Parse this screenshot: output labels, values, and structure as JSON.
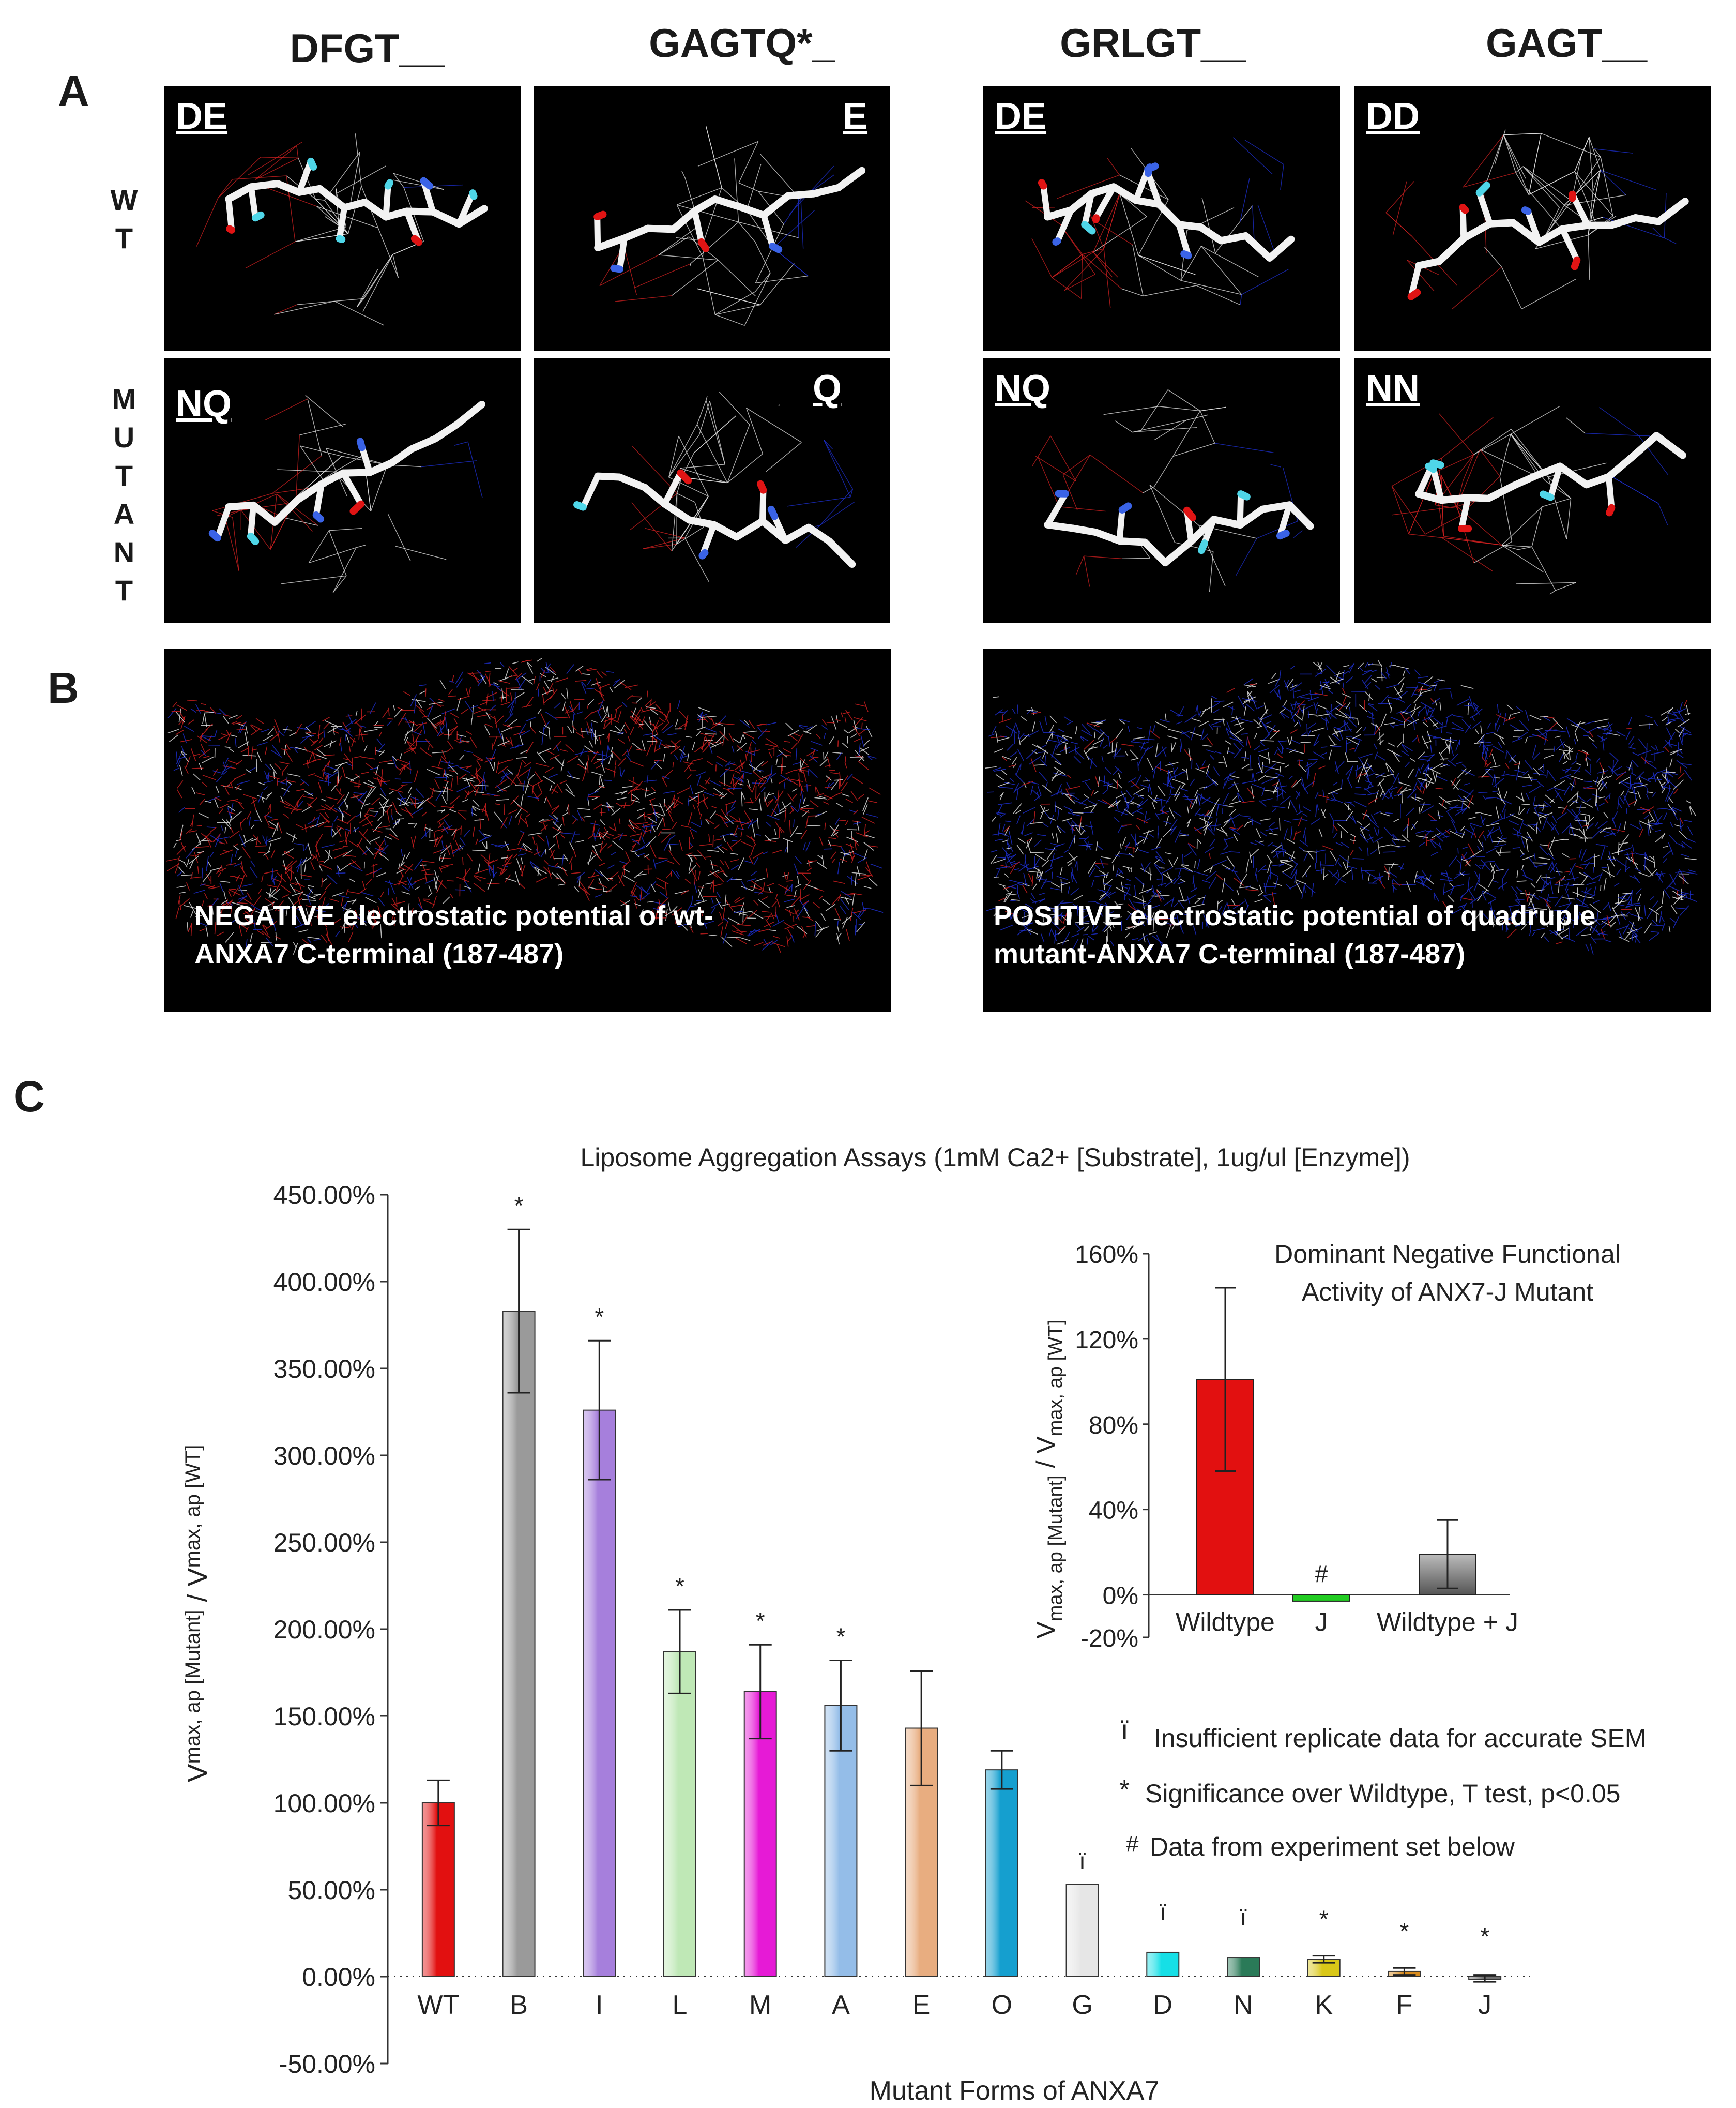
{
  "panel_labels": {
    "a": "A",
    "b": "B",
    "c": "C"
  },
  "panel_a": {
    "columns": [
      "DFGT__",
      "GAGTQ*_",
      "GRLGT__",
      "GAGT__"
    ],
    "rows": [
      {
        "label": "W\nT"
      },
      {
        "label": "M\nU\nT\nA\nN\nT"
      }
    ],
    "wt_labels": [
      "DE",
      "E",
      "DE",
      "DD"
    ],
    "mutant_labels": [
      "NQ",
      "Q",
      "NQ",
      "NN"
    ]
  },
  "panel_b": {
    "left_caption_line1": "NEGATIVE electrostatic potential of wt-",
    "left_caption_line2": "ANXA7 C-terminal (187-487)",
    "right_caption_line1": "POSITIVE electrostatic potential of quadruple",
    "right_caption_line2": "mutant-ANXA7 C-terminal (187-487)"
  },
  "colors": {
    "mesh_red": "#d12020",
    "mesh_blue": "#1d2fcf",
    "mesh_white": "#e6e6e6",
    "bond_white": "#f2f2f2",
    "atom_red": "#e01414",
    "atom_blue": "#3a63e6",
    "atom_cyan": "#4fd6e8"
  },
  "chart_data": [
    {
      "type": "bar",
      "title": "Liposome Aggregation Assays (1mM Ca2+ [Substrate], 1ug/ul [Enzyme])",
      "xlabel": "Mutant Forms of ANXA7",
      "ylabel": "V max, ap [Mutant]  / V max, ap [WT]",
      "ylim": [
        -50,
        450
      ],
      "yticks": [
        "450.00%",
        "400.00%",
        "350.00%",
        "300.00%",
        "250.00%",
        "200.00%",
        "150.00%",
        "100.00%",
        "50.00%",
        "0.00%",
        "-50.00%"
      ],
      "ytick_values": [
        450,
        400,
        350,
        300,
        250,
        200,
        150,
        100,
        50,
        0,
        -50
      ],
      "categories": [
        "WT",
        "B",
        "I",
        "L",
        "M",
        "A",
        "E",
        "O",
        "G",
        "D",
        "N",
        "K",
        "F",
        "J"
      ],
      "values": [
        100,
        383,
        326,
        187,
        164,
        156,
        143,
        119,
        53,
        14,
        11,
        10,
        3,
        -1
      ],
      "errors": [
        13,
        47,
        40,
        24,
        27,
        26,
        33,
        11,
        null,
        null,
        null,
        2,
        2,
        2
      ],
      "markers": [
        "",
        "*",
        "*",
        "*",
        "*",
        "*",
        "",
        "",
        "ï",
        "ï",
        "ï",
        "*",
        "*",
        "*"
      ],
      "colors": [
        "#e21010",
        "#9a9a9a",
        "#a67fdc",
        "#bfe8b6",
        "#e61ad6",
        "#94bde8",
        "#e8ad80",
        "#159fcf",
        "#e6e6e6",
        "#16dfe6",
        "#2a7a58",
        "#d9c718",
        "#d78b1e",
        "#707070"
      ],
      "legend": [
        {
          "symbol": "ï",
          "text": "Insufficient replicate data for accurate SEM"
        },
        {
          "symbol": "*",
          "text": "Significance over Wildtype, T test, p<0.05"
        },
        {
          "symbol": "#",
          "text": "Data from experiment set below"
        }
      ]
    },
    {
      "type": "bar",
      "title_line1": "Dominant Negative Functional",
      "title_line2": "Activity of ANX7-J Mutant",
      "ylabel": "V max, ap [Mutant] / V max, ap [WT]",
      "ylim": [
        -20,
        160
      ],
      "yticks": [
        "160%",
        "120%",
        "80%",
        "40%",
        "0%",
        "-20%"
      ],
      "ytick_values": [
        160,
        120,
        80,
        40,
        0,
        -20
      ],
      "categories": [
        "Wildtype",
        "J",
        "Wildtype + J"
      ],
      "values": [
        101,
        -3,
        19
      ],
      "errors": [
        43,
        1,
        16
      ],
      "markers": [
        "",
        "#",
        ""
      ],
      "colors": [
        "#e21010",
        "#22cc22",
        "#bcbcbc"
      ]
    }
  ]
}
